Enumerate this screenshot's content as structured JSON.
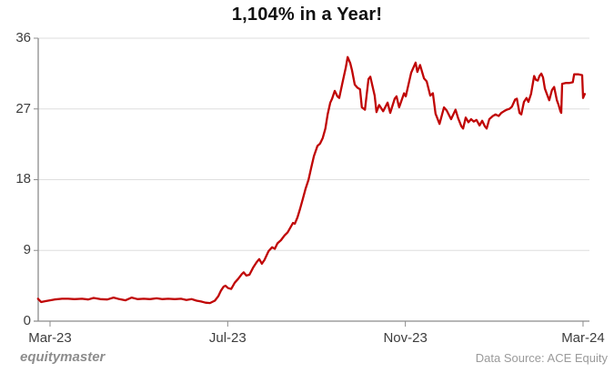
{
  "branding": {
    "logo_text": "equitymaster"
  },
  "footer": {
    "data_source": "Data Source: ACE Equity"
  },
  "chart_data": {
    "type": "line",
    "title": "1,104% in a Year!",
    "xlabel": "",
    "ylabel": "",
    "ylim": [
      0,
      36
    ],
    "x_unit": "months since Mar-2023",
    "grid": "horizontal",
    "grid_color": "#dedede",
    "axis_color": "#8c8c8c",
    "y_ticks": [
      {
        "label": "36",
        "v": 36
      },
      {
        "label": "27",
        "v": 27
      },
      {
        "label": "18",
        "v": 18
      },
      {
        "label": "9",
        "v": 9
      },
      {
        "label": "0",
        "v": 0
      }
    ],
    "x_ticks": [
      {
        "label": "Mar-23",
        "m": 0
      },
      {
        "label": "Jul-23",
        "m": 4
      },
      {
        "label": "Nov-23",
        "m": 8
      },
      {
        "label": "Mar-24",
        "m": 12
      }
    ],
    "series": [
      {
        "name": "Share price",
        "color": "#c00505",
        "points": [
          [
            -0.27,
            2.85
          ],
          [
            -0.2,
            2.43
          ],
          [
            -0.1,
            2.55
          ],
          [
            0,
            2.65
          ],
          [
            0.1,
            2.75
          ],
          [
            0.27,
            2.85
          ],
          [
            0.41,
            2.85
          ],
          [
            0.55,
            2.8
          ],
          [
            0.72,
            2.85
          ],
          [
            0.86,
            2.75
          ],
          [
            0.98,
            2.95
          ],
          [
            1.13,
            2.8
          ],
          [
            1.29,
            2.75
          ],
          [
            1.43,
            3.0
          ],
          [
            1.56,
            2.8
          ],
          [
            1.7,
            2.65
          ],
          [
            1.84,
            3.0
          ],
          [
            1.97,
            2.8
          ],
          [
            2.11,
            2.85
          ],
          [
            2.25,
            2.8
          ],
          [
            2.4,
            2.9
          ],
          [
            2.52,
            2.8
          ],
          [
            2.66,
            2.85
          ],
          [
            2.81,
            2.8
          ],
          [
            2.95,
            2.85
          ],
          [
            3.07,
            2.7
          ],
          [
            3.19,
            2.8
          ],
          [
            3.3,
            2.6
          ],
          [
            3.4,
            2.5
          ],
          [
            3.5,
            2.35
          ],
          [
            3.6,
            2.3
          ],
          [
            3.71,
            2.6
          ],
          [
            3.79,
            3.2
          ],
          [
            3.85,
            3.9
          ],
          [
            3.91,
            4.4
          ],
          [
            3.95,
            4.5
          ],
          [
            4.01,
            4.2
          ],
          [
            4.08,
            4.1
          ],
          [
            4.16,
            4.9
          ],
          [
            4.24,
            5.4
          ],
          [
            4.32,
            6.0
          ],
          [
            4.36,
            6.2
          ],
          [
            4.42,
            5.8
          ],
          [
            4.49,
            5.9
          ],
          [
            4.57,
            6.8
          ],
          [
            4.65,
            7.5
          ],
          [
            4.71,
            7.9
          ],
          [
            4.77,
            7.3
          ],
          [
            4.83,
            7.8
          ],
          [
            4.92,
            8.9
          ],
          [
            5.0,
            9.4
          ],
          [
            5.06,
            9.2
          ],
          [
            5.12,
            9.9
          ],
          [
            5.2,
            10.3
          ],
          [
            5.28,
            10.9
          ],
          [
            5.35,
            11.3
          ],
          [
            5.41,
            11.9
          ],
          [
            5.47,
            12.5
          ],
          [
            5.51,
            12.4
          ],
          [
            5.57,
            13.2
          ],
          [
            5.63,
            14.3
          ],
          [
            5.69,
            15.5
          ],
          [
            5.75,
            16.8
          ],
          [
            5.82,
            18.0
          ],
          [
            5.88,
            19.5
          ],
          [
            5.94,
            21.0
          ],
          [
            6.02,
            22.3
          ],
          [
            6.08,
            22.6
          ],
          [
            6.14,
            23.3
          ],
          [
            6.2,
            24.5
          ],
          [
            6.25,
            26.3
          ],
          [
            6.31,
            27.8
          ],
          [
            6.35,
            28.3
          ],
          [
            6.41,
            29.3
          ],
          [
            6.47,
            28.6
          ],
          [
            6.51,
            28.4
          ],
          [
            6.59,
            30.5
          ],
          [
            6.66,
            32.3
          ],
          [
            6.7,
            33.6
          ],
          [
            6.76,
            32.8
          ],
          [
            6.8,
            31.9
          ],
          [
            6.86,
            30.1
          ],
          [
            6.92,
            29.7
          ],
          [
            6.98,
            29.5
          ],
          [
            7.02,
            27.2
          ],
          [
            7.09,
            26.9
          ],
          [
            7.17,
            30.8
          ],
          [
            7.21,
            31.1
          ],
          [
            7.31,
            28.7
          ],
          [
            7.35,
            26.6
          ],
          [
            7.41,
            27.5
          ],
          [
            7.5,
            26.7
          ],
          [
            7.6,
            27.8
          ],
          [
            7.66,
            26.5
          ],
          [
            7.76,
            28.3
          ],
          [
            7.8,
            28.6
          ],
          [
            7.86,
            27.2
          ],
          [
            7.97,
            29.0
          ],
          [
            8.01,
            28.6
          ],
          [
            8.13,
            31.6
          ],
          [
            8.23,
            32.9
          ],
          [
            8.27,
            31.7
          ],
          [
            8.33,
            32.6
          ],
          [
            8.42,
            30.9
          ],
          [
            8.48,
            30.5
          ],
          [
            8.56,
            28.7
          ],
          [
            8.62,
            29.0
          ],
          [
            8.68,
            26.4
          ],
          [
            8.77,
            25.1
          ],
          [
            8.87,
            27.2
          ],
          [
            8.93,
            26.8
          ],
          [
            9.03,
            25.7
          ],
          [
            9.13,
            26.9
          ],
          [
            9.19,
            25.8
          ],
          [
            9.26,
            24.8
          ],
          [
            9.3,
            24.5
          ],
          [
            9.36,
            25.9
          ],
          [
            9.42,
            25.3
          ],
          [
            9.48,
            25.7
          ],
          [
            9.54,
            25.4
          ],
          [
            9.6,
            25.6
          ],
          [
            9.67,
            24.9
          ],
          [
            9.73,
            25.5
          ],
          [
            9.79,
            24.8
          ],
          [
            9.83,
            24.5
          ],
          [
            9.89,
            25.7
          ],
          [
            9.97,
            26.1
          ],
          [
            10.03,
            26.3
          ],
          [
            10.1,
            26.1
          ],
          [
            10.16,
            26.5
          ],
          [
            10.22,
            26.7
          ],
          [
            10.28,
            26.9
          ],
          [
            10.34,
            27.0
          ],
          [
            10.4,
            27.3
          ],
          [
            10.47,
            28.2
          ],
          [
            10.51,
            28.3
          ],
          [
            10.57,
            26.5
          ],
          [
            10.61,
            26.3
          ],
          [
            10.67,
            27.9
          ],
          [
            10.73,
            28.4
          ],
          [
            10.77,
            27.9
          ],
          [
            10.83,
            28.9
          ],
          [
            10.9,
            31.2
          ],
          [
            10.94,
            30.7
          ],
          [
            10.98,
            30.6
          ],
          [
            11.02,
            31.2
          ],
          [
            11.06,
            31.5
          ],
          [
            11.1,
            31.0
          ],
          [
            11.14,
            29.6
          ],
          [
            11.18,
            29.0
          ],
          [
            11.24,
            28.1
          ],
          [
            11.3,
            29.4
          ],
          [
            11.35,
            29.8
          ],
          [
            11.41,
            28.1
          ],
          [
            11.45,
            27.5
          ],
          [
            11.49,
            26.7
          ],
          [
            11.51,
            26.5
          ],
          [
            11.53,
            30.2
          ],
          [
            11.61,
            30.3
          ],
          [
            11.69,
            30.3
          ],
          [
            11.77,
            30.4
          ],
          [
            11.8,
            31.4
          ],
          [
            11.9,
            31.4
          ],
          [
            11.98,
            31.3
          ],
          [
            12.0,
            28.4
          ],
          [
            12.04,
            28.9
          ]
        ]
      }
    ]
  }
}
